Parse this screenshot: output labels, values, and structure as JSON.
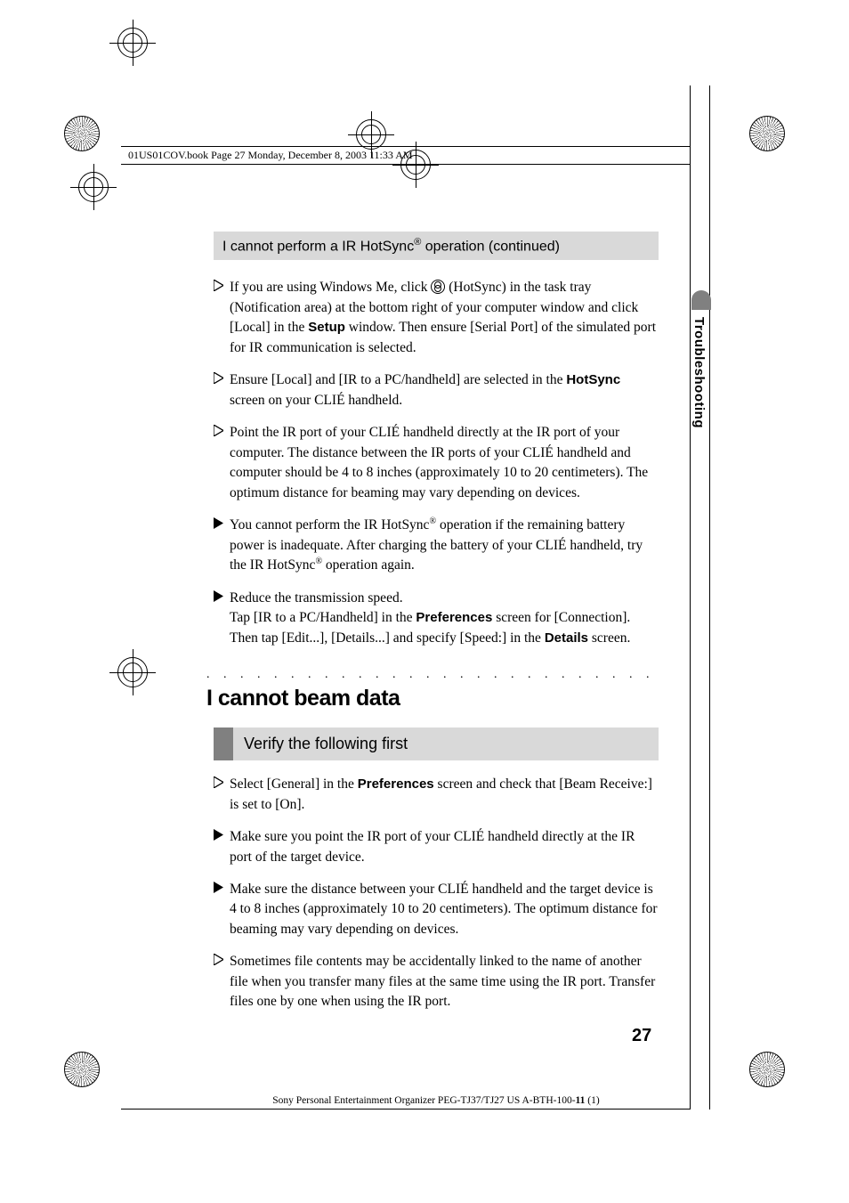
{
  "header": {
    "running": "01US01COV.book  Page 27  Monday, December 8, 2003  11:33 AM"
  },
  "side_tab": "Troubleshooting",
  "continued_heading": {
    "pre": "I cannot perform a IR HotSync",
    "sup": "®",
    "post": " operation (continued)"
  },
  "items_top": [
    {
      "filled": false,
      "html": "If you are using Windows Me, click <span class='hotsync-icon'></span> (HotSync) in the task tray (Notification area) at the bottom right of your computer window and click [Local] in the <b>Setup</b> window. Then ensure [Serial Port] of the simulated port for IR communication is selected."
    },
    {
      "filled": false,
      "html": "Ensure [Local] and [IR to a PC/handheld] are selected in the <b>HotSync</b> screen on your CLIÉ handheld."
    },
    {
      "filled": false,
      "html": "Point the IR port of your CLIÉ handheld directly at the IR port of your computer. The distance between the IR ports of your CLIÉ handheld and computer should be 4 to 8 inches (approximately 10 to 20 centimeters). The optimum distance for beaming may vary depending on devices."
    },
    {
      "filled": true,
      "html": "You cannot perform the IR HotSync<sup>®</sup> operation if the remaining battery power is inadequate. After charging the battery of your CLIÉ handheld, try the IR HotSync<sup>®</sup> operation again."
    },
    {
      "filled": true,
      "html": "Reduce the transmission speed.<br>Tap [IR to a PC/Handheld] in the <b>Preferences</b> screen for [Connection]. Then tap [Edit...], [Details...] and specify [Speed:] in the <b>Details</b> screen."
    }
  ],
  "section_heading": "I cannot beam data",
  "sub_heading": "Verify the following first",
  "items_bottom": [
    {
      "filled": false,
      "html": "Select [General] in the <b>Preferences</b> screen and check that [Beam Receive:] is set to [On]."
    },
    {
      "filled": true,
      "html": "Make sure you point the IR port of your CLIÉ handheld directly at the IR port of the target device."
    },
    {
      "filled": true,
      "html": "Make sure the distance between your CLIÉ handheld and the target device is 4 to 8 inches (approximately 10 to 20 centimeters). The optimum distance for beaming may vary depending on devices."
    },
    {
      "filled": false,
      "html": "Sometimes file contents may be accidentally linked to the name of another file when you transfer many files at the same time using the IR port. Transfer files one by one when using the IR port."
    }
  ],
  "page_number": "27",
  "footer": "Sony Personal Entertainment Organizer  PEG-TJ37/TJ27 US  A-BTH-100-<b>11</b> (1)",
  "dots": ". . . . . . . . . . . . . . . . . . . . . . . . . . . . . . . . . . . . . . . . . . . .",
  "colors": {
    "gray_bg": "#d9d9d9",
    "dark_gray": "#808080",
    "black": "#000000"
  }
}
